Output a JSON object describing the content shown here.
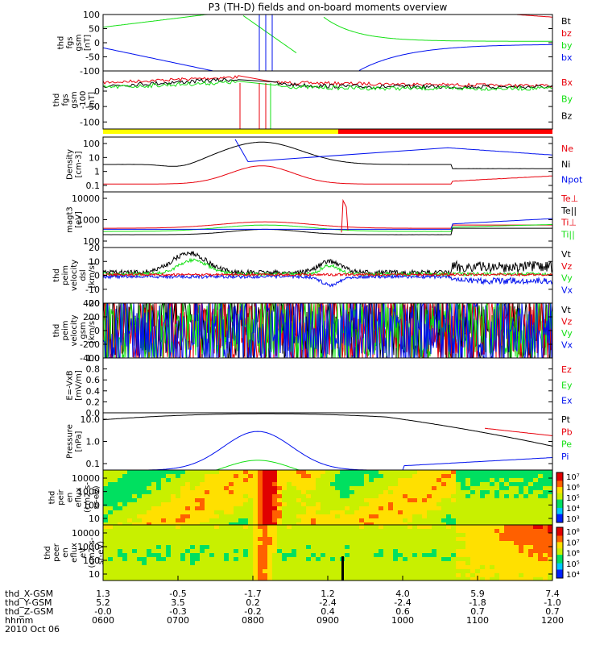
{
  "title": "P3 (TH-D) fields and on-board moments overview",
  "date": "2010 Oct 06",
  "colors": {
    "black": "#000000",
    "red": "#e8000b",
    "green": "#14e014",
    "blue": "#0010ee",
    "yellow": "#ffff00",
    "bar_red": "#ff0000"
  },
  "chart_data": [
    {
      "id": "fgs",
      "type": "line",
      "ylabel_lines": [
        "thd",
        "fgs",
        "gsm",
        "[nT]"
      ],
      "ylim": [
        -100,
        100
      ],
      "ticks": [
        "100",
        "50",
        "0",
        "-50",
        "-100"
      ],
      "legend": [
        {
          "label": "Bt",
          "color": "#000000"
        },
        {
          "label": "bz",
          "color": "#e8000b"
        },
        {
          "label": "by",
          "color": "#14e014"
        },
        {
          "label": "bx",
          "color": "#0010ee"
        }
      ]
    },
    {
      "id": "fgl",
      "type": "line",
      "ylabel_lines": [
        "thd",
        "fgs",
        "gsm",
        "-100",
        "[nT]"
      ],
      "ylim": [
        -125,
        50
      ],
      "ticks": [
        "0",
        "-50",
        "-100"
      ],
      "legend": [
        {
          "label": "Bx",
          "color": "#e8000b"
        },
        {
          "label": "By",
          "color": "#14e014"
        },
        {
          "label": "Bz",
          "color": "#000000"
        }
      ]
    },
    {
      "id": "density",
      "type": "line",
      "scale": "log",
      "ylabel_lines": [
        "Density",
        "[cm-3]"
      ],
      "ticks": [
        "100",
        "10",
        "1",
        "0.1"
      ],
      "legend": [
        {
          "label": "Ne",
          "color": "#e8000b"
        },
        {
          "label": "Ni",
          "color": "#000000"
        },
        {
          "label": "Npot",
          "color": "#0010ee"
        }
      ]
    },
    {
      "id": "temp",
      "type": "line",
      "scale": "log",
      "ylabel_lines": [
        "magt3",
        "[eV]"
      ],
      "ticks": [
        "10000",
        "1000",
        "100"
      ],
      "legend": [
        {
          "label": "Te⊥",
          "color": "#e8000b"
        },
        {
          "label": "Te||",
          "color": "#000000"
        },
        {
          "label": "Ti⊥",
          "color": "#e8000b"
        },
        {
          "label": "Ti||",
          "color": "#14e014"
        }
      ]
    },
    {
      "id": "velocity_e",
      "type": "line",
      "ylabel_lines": [
        "thd",
        "peim",
        "velocity",
        "dsl",
        "[km/s]"
      ],
      "ylim": [
        -20,
        20
      ],
      "ticks": [
        "20",
        "10",
        "0",
        "-10",
        "-20"
      ],
      "legend": [
        {
          "label": "Vt",
          "color": "#000000"
        },
        {
          "label": "Vz",
          "color": "#e8000b"
        },
        {
          "label": "Vy",
          "color": "#14e014"
        },
        {
          "label": "Vx",
          "color": "#0010ee"
        }
      ]
    },
    {
      "id": "velocity_gsm",
      "type": "line",
      "ylabel_lines": [
        "thd",
        "peim",
        "velocity",
        "gsm",
        "[km/s]"
      ],
      "ylim": [
        -400,
        400
      ],
      "ticks": [
        "400",
        "200",
        "0",
        "-200",
        "-400"
      ],
      "legend": [
        {
          "label": "Vt",
          "color": "#000000"
        },
        {
          "label": "Vz",
          "color": "#e8000b"
        },
        {
          "label": "Vy",
          "color": "#14e014"
        },
        {
          "label": "Vx",
          "color": "#0010ee"
        }
      ]
    },
    {
      "id": "efield",
      "type": "line",
      "ylabel_lines": [
        "E=-VxB",
        "[mV/m]"
      ],
      "ylim": [
        0,
        1
      ],
      "ticks": [
        "1.0",
        "0.8",
        "0.6",
        "0.4",
        "0.2",
        "0.0"
      ],
      "legend": [
        {
          "label": "Ez",
          "color": "#e8000b"
        },
        {
          "label": "Ey",
          "color": "#14e014"
        },
        {
          "label": "Ex",
          "color": "#0010ee"
        }
      ]
    },
    {
      "id": "pressure",
      "type": "line",
      "scale": "log",
      "ylabel_lines": [
        "Pressure",
        "[nPa]"
      ],
      "ticks": [
        "10.0",
        "1.0",
        "0.1"
      ],
      "legend": [
        {
          "label": "Pt",
          "color": "#000000"
        },
        {
          "label": "Pb",
          "color": "#e8000b"
        },
        {
          "label": "Pe",
          "color": "#14e014"
        },
        {
          "label": "Pi",
          "color": "#0010ee"
        }
      ]
    },
    {
      "id": "ion_spec",
      "type": "heatmap",
      "ylabel_lines": [
        "thd",
        "peir",
        "en",
        "eflux",
        "(cm2-s-",
        "sr-eV)"
      ],
      "ticks": [
        "10000",
        "1000",
        "100",
        "10"
      ],
      "cbar_ticks": [
        "10⁷",
        "10⁶",
        "10⁵",
        "10⁴",
        "10³"
      ]
    },
    {
      "id": "ele_spec",
      "type": "heatmap",
      "ylabel_lines": [
        "thd",
        "peer",
        "en",
        "eflux",
        "eV",
        "(cm2-s-",
        "sr-eV)"
      ],
      "ticks": [
        "10000",
        "1000",
        "100",
        "10"
      ],
      "cbar_ticks": [
        "10⁸",
        "10⁷",
        "10⁶",
        "10⁵",
        "10⁴"
      ]
    }
  ],
  "xaxis": {
    "row_labels": [
      "thd_X-GSM",
      "thd_Y-GSM",
      "thd_Z-GSM",
      "hhmm"
    ],
    "columns": [
      [
        "1.3",
        "5.2",
        "-0.0",
        "0600"
      ],
      [
        "-0.5",
        "3.5",
        "-0.3",
        "0700"
      ],
      [
        "-1.7",
        "0.2",
        "-0.2",
        "0800"
      ],
      [
        "1.2",
        "-2.4",
        "0.4",
        "0900"
      ],
      [
        "4.0",
        "-2.4",
        "0.6",
        "1000"
      ],
      [
        "5.9",
        "-1.8",
        "0.7",
        "1100"
      ],
      [
        "7.4",
        "-1.0",
        "0.7",
        "1200"
      ]
    ]
  }
}
